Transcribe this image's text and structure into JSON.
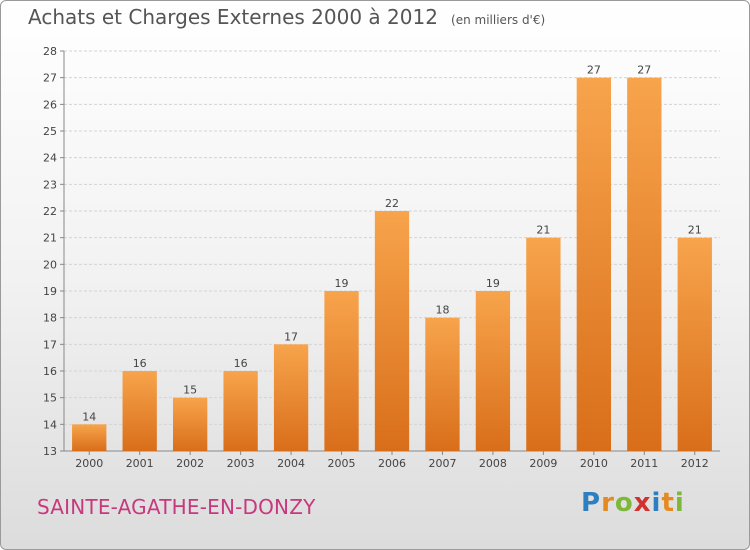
{
  "header": {
    "title": "Achats et Charges Externes 2000 à 2012",
    "subtitle": "(en milliers d'€)"
  },
  "footer": {
    "commune": "SAINTE-AGATHE-EN-DONZY",
    "logo_letters": [
      "P",
      "r",
      "o",
      "x",
      "i",
      "t",
      "i"
    ],
    "logo_colors": [
      "#2e7fc1",
      "#e58a1f",
      "#7db83a",
      "#d2322d",
      "#2e7fc1",
      "#e58a1f",
      "#7db83a"
    ],
    "commune_color": "#c8387e"
  },
  "chart_data": {
    "type": "bar",
    "title": "Achats et Charges Externes 2000 à 2012",
    "subtitle": "(en milliers d'€)",
    "categories": [
      "2000",
      "2001",
      "2002",
      "2003",
      "2004",
      "2005",
      "2006",
      "2007",
      "2008",
      "2009",
      "2010",
      "2011",
      "2012"
    ],
    "values": [
      14,
      16,
      15,
      16,
      17,
      19,
      22,
      18,
      19,
      21,
      27,
      27,
      21
    ],
    "ylim": [
      13,
      28
    ],
    "yticks": [
      13,
      14,
      15,
      16,
      17,
      18,
      19,
      20,
      21,
      22,
      23,
      24,
      25,
      26,
      27,
      28
    ],
    "grid": true,
    "data_labels": true,
    "bar_color_top": "#f7a44c",
    "bar_color_bottom": "#d96e1a"
  }
}
